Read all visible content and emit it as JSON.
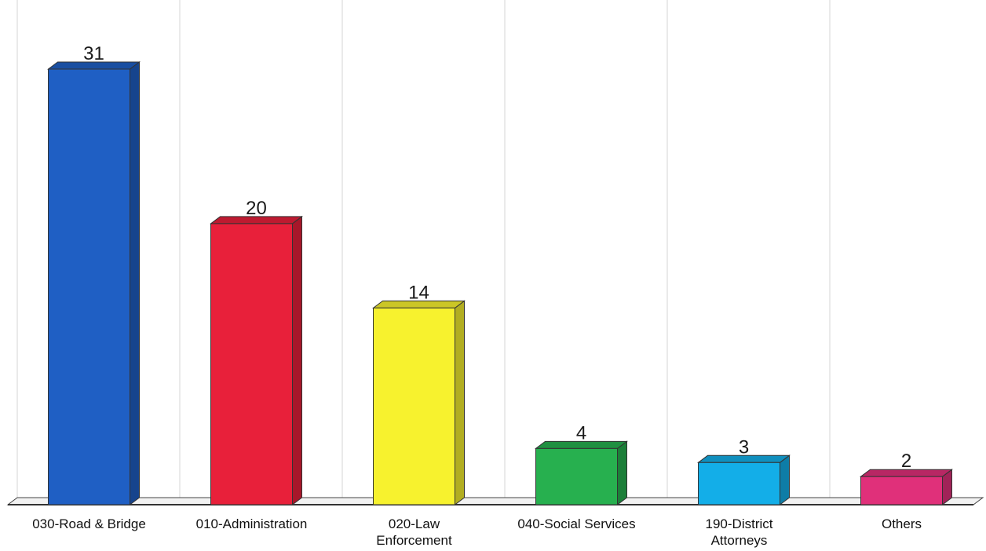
{
  "chart_data": {
    "type": "bar",
    "categories": [
      "030-Road & Bridge",
      "010-Administration",
      "020-Law Enforcement",
      "040-Social Services",
      "190-District Attorneys",
      "Others"
    ],
    "category_lines": [
      [
        "030-Road & Bridge"
      ],
      [
        "010-Administration"
      ],
      [
        "020-Law",
        "Enforcement"
      ],
      [
        "040-Social Services"
      ],
      [
        "190-District",
        "Attorneys"
      ],
      [
        "Others"
      ]
    ],
    "values": [
      31,
      20,
      14,
      4,
      3,
      2
    ],
    "data_labels": [
      "31",
      "20",
      "14",
      "4",
      "3",
      "2"
    ],
    "colors": [
      "#1f5fc4",
      "#e8203a",
      "#f7f22e",
      "#27b04f",
      "#13aee8",
      "#e0307a"
    ],
    "title": "",
    "xlabel": "",
    "ylabel": "",
    "ylim": [
      0,
      31
    ],
    "style": "3d",
    "grid": "vertical",
    "legend": "none"
  }
}
